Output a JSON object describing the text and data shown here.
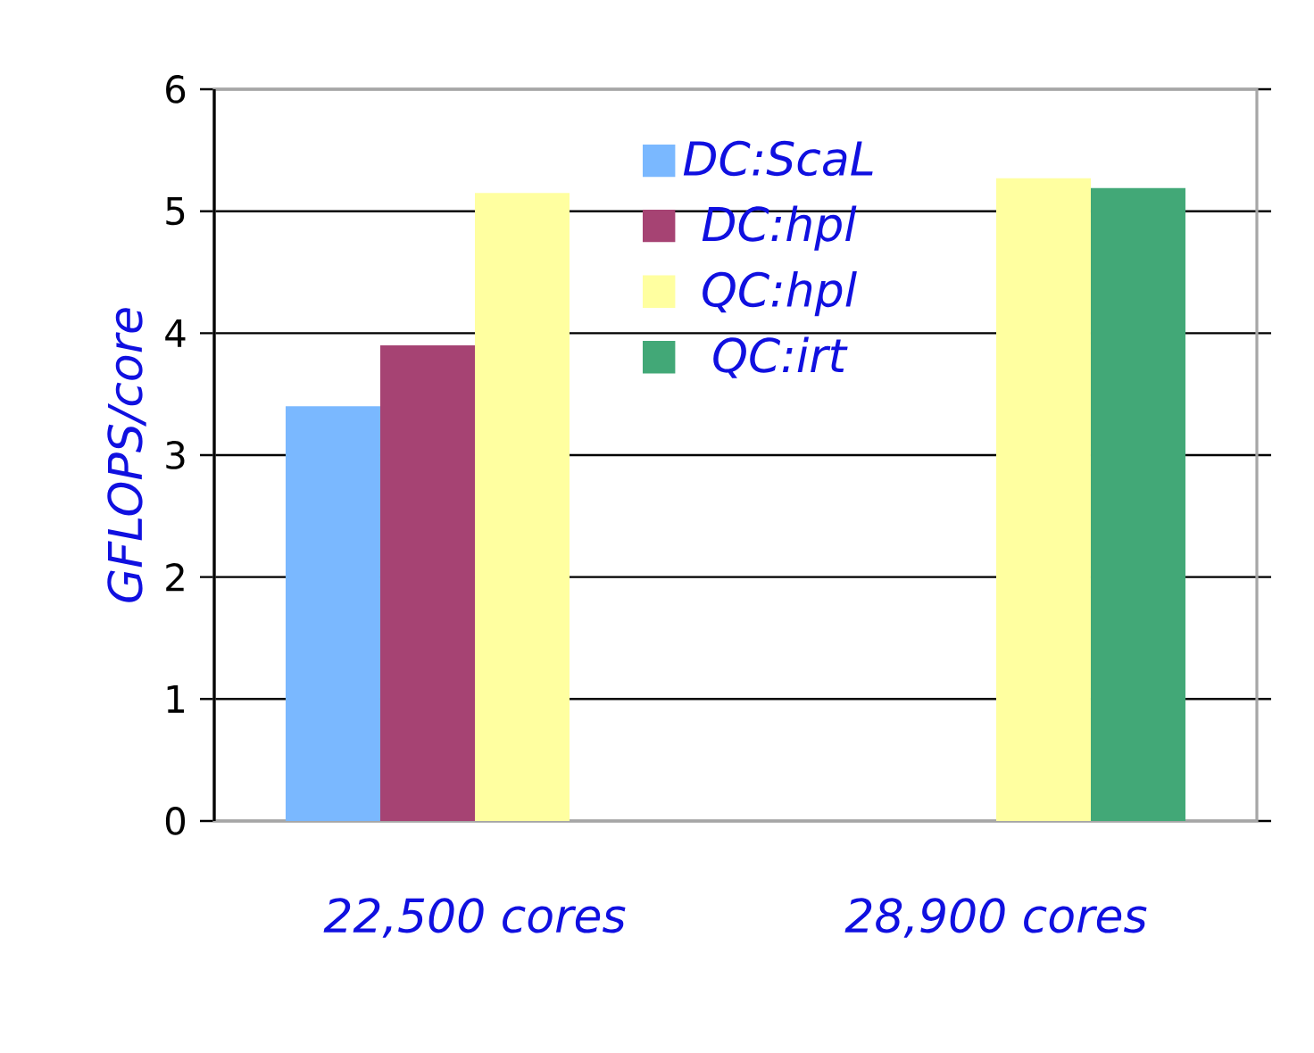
{
  "chart_data": {
    "type": "bar",
    "ylabel": "GFLOPS/core",
    "categories": [
      "22,500 cores",
      "28,900 cores"
    ],
    "series": [
      {
        "name": "DC:ScaL",
        "color": "#7ab8ff",
        "values": [
          3.4,
          null
        ]
      },
      {
        "name": "DC:hpl",
        "color": "#a64373",
        "values": [
          3.9,
          null
        ]
      },
      {
        "name": "QC:hpl",
        "color": "#ffffa0",
        "values": [
          5.15,
          5.27
        ]
      },
      {
        "name": "QC:irt",
        "color": "#42a877",
        "values": [
          null,
          5.19
        ]
      }
    ],
    "ylim": [
      0,
      6
    ],
    "yticks": [
      0,
      1,
      2,
      3,
      4,
      5,
      6
    ],
    "grid": "y",
    "legend": "top"
  }
}
